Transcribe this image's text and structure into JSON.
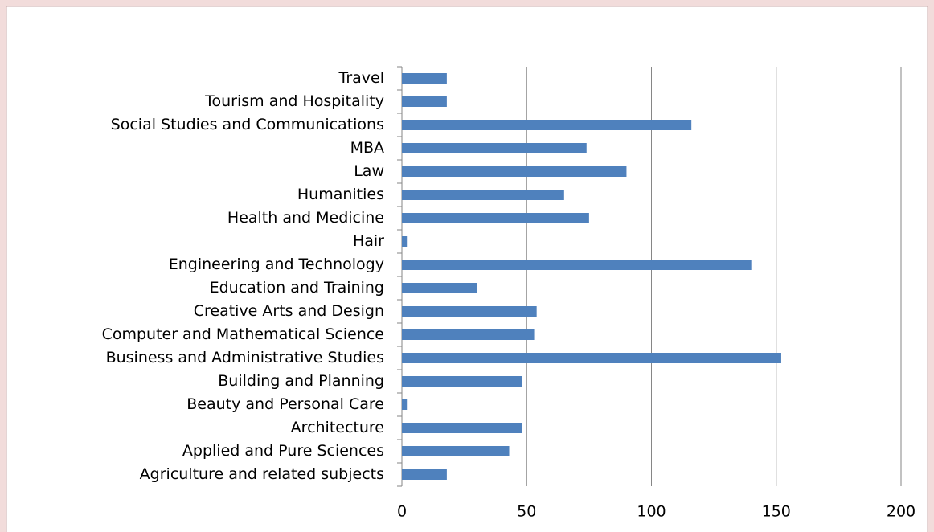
{
  "chart_data": {
    "type": "barh",
    "categories": [
      "Agriculture and related subjects",
      "Applied and Pure Sciences",
      "Architecture",
      "Beauty and Personal Care",
      "Building and Planning",
      "Business and Administrative Studies",
      "Computer and Mathematical Science",
      "Creative Arts and Design",
      "Education and Training",
      "Engineering and Technology",
      "Hair",
      "Health and Medicine",
      "Humanities",
      "Law",
      "MBA",
      "Social Studies and Communications",
      "Tourism and Hospitality",
      "Travel"
    ],
    "values": [
      18,
      43,
      48,
      2,
      48,
      152,
      53,
      54,
      30,
      140,
      2,
      75,
      65,
      90,
      74,
      116,
      18,
      18
    ],
    "color": "#4f81bd",
    "xlim": [
      0,
      200
    ],
    "xticks": [
      0,
      50,
      100,
      150,
      200
    ],
    "grid": true
  }
}
